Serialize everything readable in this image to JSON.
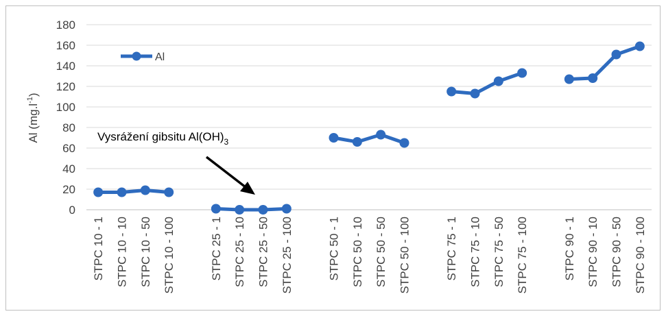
{
  "chart_data": {
    "type": "line",
    "categories": [
      "STPC 10 - 1",
      "STPC 10 - 10",
      "STPC 10 - 50",
      "STPC 10 - 100",
      "STPC 25 - 1",
      "STPC 25 - 10",
      "STPC 25 - 50",
      "STPC 25 - 100",
      "STPC 50 - 1",
      "STPC 50 - 10",
      "STPC 50 - 50",
      "STPC 50 - 100",
      "STPC 75 - 1",
      "STPC 75 - 10",
      "STPC 75 - 50",
      "STPC 75 - 100",
      "STPC 90 - 1",
      "STPC 90 - 10",
      "STPC 90 - 50",
      "STPC 90 - 100"
    ],
    "groups": [
      [
        0,
        1,
        2,
        3
      ],
      [
        4,
        5,
        6,
        7
      ],
      [
        8,
        9,
        10,
        11
      ],
      [
        12,
        13,
        14,
        15
      ],
      [
        16,
        17,
        18,
        19
      ]
    ],
    "series": [
      {
        "name": "Al",
        "values": [
          17,
          17,
          19,
          17,
          1,
          0,
          0,
          1,
          70,
          66,
          73,
          65,
          115,
          113,
          125,
          133,
          127,
          128,
          151,
          159
        ]
      }
    ],
    "ylabel": "Al (mg.l",
    "ylabel_sup": "-1",
    "ylabel_close": ")",
    "ylim": [
      0,
      180
    ],
    "yticks": [
      0,
      20,
      40,
      60,
      80,
      100,
      120,
      140,
      160,
      180
    ],
    "grid": true,
    "legend_position": "top-left",
    "annotation": {
      "text": "Vysrážení gibsitu Al(OH)",
      "subscript": "3"
    },
    "colors": {
      "series": "#2e6bbf",
      "grid": "#d9d9d9",
      "text": "#404040",
      "arrow": "#000000"
    }
  }
}
